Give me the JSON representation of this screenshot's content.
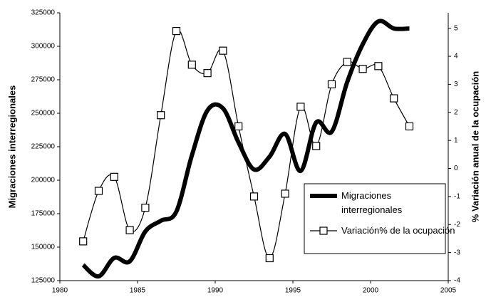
{
  "chart_data": {
    "type": "line",
    "x": [
      1981.5,
      1982.5,
      1983.5,
      1984.5,
      1985.5,
      1986.5,
      1987.5,
      1988.5,
      1989.5,
      1990.5,
      1991.5,
      1992.5,
      1993.5,
      1994.5,
      1995.5,
      1996.5,
      1997.5,
      1998.5,
      1999.5,
      2000.5,
      2001.5,
      2002.5
    ],
    "xlim": [
      1980,
      2005
    ],
    "xticks": [
      1980,
      1985,
      1990,
      1995,
      2000,
      2005
    ],
    "ylim": [
      125000,
      325000
    ],
    "yticks": [
      125000,
      150000,
      175000,
      200000,
      225000,
      250000,
      275000,
      300000,
      325000
    ],
    "y2lim": [
      -4,
      5.55
    ],
    "y2ticks": [
      -4,
      -3,
      -2,
      -1,
      0,
      1,
      2,
      3,
      4,
      5
    ],
    "ylabel": "Migraciones interregionales",
    "y2label": "% Variación anual de la ocupación",
    "legend": "bottom-right",
    "series": [
      {
        "name": "Migraciones interregionales",
        "color": "#000000",
        "values": [
          136700,
          128200,
          142000,
          139400,
          161700,
          169700,
          176600,
          218600,
          252100,
          253700,
          228200,
          208000,
          217600,
          234600,
          206900,
          243100,
          236200,
          273400,
          301600,
          318600,
          313300,
          313300
        ]
      },
      {
        "name": "Variación% de la ocupación",
        "color": "#000000",
        "axis": "y2",
        "values": [
          -2.6,
          -0.8,
          -0.3,
          -2.2,
          -1.4,
          1.9,
          4.9,
          3.7,
          3.4,
          4.2,
          1.5,
          -1.0,
          -3.2,
          -0.9,
          2.2,
          0.8,
          3.0,
          3.8,
          3.55,
          3.65,
          2.5,
          1.5
        ]
      }
    ]
  }
}
